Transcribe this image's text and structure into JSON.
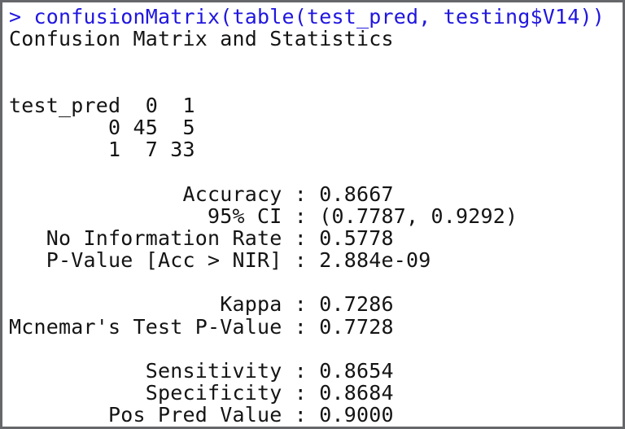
{
  "window": {
    "title": "R console output",
    "background": "#ffffff",
    "border_color": "#66676a"
  },
  "colors": {
    "command_text": "#2016df",
    "output_text": "#141414"
  },
  "console": {
    "prompt_symbol": ">",
    "prompt_line": "> confusionMatrix(table(test_pred, testing$V14))",
    "output_lines": [
      "Confusion Matrix and Statistics",
      "",
      "",
      "test_pred  0  1",
      "        0 45  5",
      "        1  7 33",
      "",
      "              Accuracy : 0.8667",
      "                95% CI : (0.7787, 0.9292)",
      "   No Information Rate : 0.5778",
      "   P-Value [Acc > NIR] : 2.884e-09",
      "",
      "                 Kappa : 0.7286",
      "Mcnemar's Test P-Value : 0.7728",
      "",
      "           Sensitivity : 0.8654",
      "           Specificity : 0.8684",
      "        Pos Pred Value : 0.9000"
    ]
  },
  "confusion_matrix": {
    "row_variable": "test_pred",
    "column_labels": [
      "0",
      "1"
    ],
    "rows": [
      {
        "label": "0",
        "values": [
          45,
          5
        ]
      },
      {
        "label": "1",
        "values": [
          7,
          33
        ]
      }
    ]
  },
  "statistics": {
    "accuracy": "0.8667",
    "ci_95": "(0.7787, 0.9292)",
    "no_information_rate": "0.5778",
    "p_value_acc_gt_nir": "2.884e-09",
    "kappa": "0.7286",
    "mcnemars_test_p_value": "0.7728",
    "sensitivity": "0.8654",
    "specificity": "0.8684",
    "pos_pred_value": "0.9000"
  }
}
